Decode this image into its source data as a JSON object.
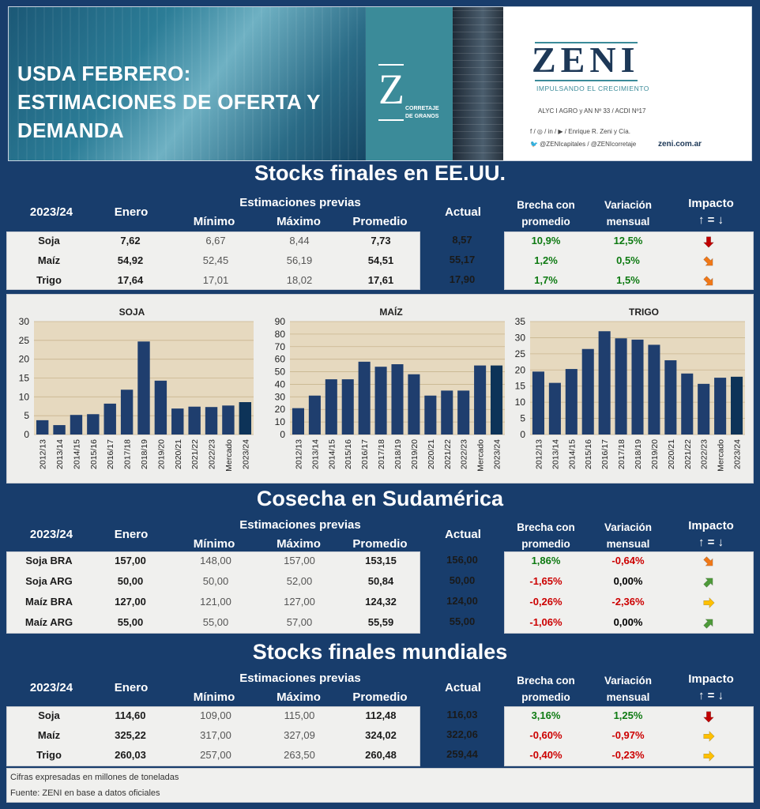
{
  "banner": {
    "title_lines": [
      "USDA FEBRERO:",
      "ESTIMACIONES DE OFERTA Y",
      "DEMANDA"
    ],
    "z_logo": "Z",
    "z_logo_sub1": "CORRETAJE",
    "z_logo_sub2": "DE GRANOS",
    "zeni_logo": "ZENI",
    "slogan": "IMPULSANDO EL CRECIMIENTO",
    "alyc": "ALYC I AGRO y AN Nº 33 / ACDI Nº17",
    "social1": "f / ◎ / in / ▶ / Enrique R. Zeni y Cía.",
    "social2": "🐦 @ZENIcapitales / @ZENIcorretaje",
    "web": "zeni.com.ar"
  },
  "headers": {
    "campaign": "2023/24",
    "enero": "Enero",
    "previas": "Estimaciones previas",
    "minimo": "Mínimo",
    "maximo": "Máximo",
    "promedio": "Promedio",
    "actual": "Actual",
    "brecha1": "Brecha con",
    "brecha2": "promedio",
    "variacion1": "Variación",
    "variacion2": "mensual",
    "impacto1": "Impacto",
    "impacto2": "↑ = ↓"
  },
  "sections": {
    "us": "Stocks finales en EE.UU.",
    "sa": "Cosecha en Sudamérica",
    "world": "Stocks finales mundiales"
  },
  "us_table": [
    {
      "name": "Soja",
      "enero": "7,62",
      "min": "6,67",
      "max": "8,44",
      "prom": "7,73",
      "actual": "8,57",
      "brecha": "10,9%",
      "brecha_color": "pos",
      "var": "12,5%",
      "var_color": "pos",
      "impact": "down"
    },
    {
      "name": "Maíz",
      "enero": "54,92",
      "min": "52,45",
      "max": "56,19",
      "prom": "54,51",
      "actual": "55,17",
      "brecha": "1,2%",
      "brecha_color": "pos",
      "var": "0,5%",
      "var_color": "pos",
      "impact": "downright"
    },
    {
      "name": "Trigo",
      "enero": "17,64",
      "min": "17,01",
      "max": "18,02",
      "prom": "17,61",
      "actual": "17,90",
      "brecha": "1,7%",
      "brecha_color": "pos",
      "var": "1,5%",
      "var_color": "pos",
      "impact": "downright"
    }
  ],
  "sa_table": [
    {
      "name": "Soja BRA",
      "enero": "157,00",
      "min": "148,00",
      "max": "157,00",
      "prom": "153,15",
      "actual": "156,00",
      "brecha": "1,86%",
      "brecha_color": "pos",
      "var": "-0,64%",
      "var_color": "neg",
      "impact": "downright"
    },
    {
      "name": "Soja ARG",
      "enero": "50,00",
      "min": "50,00",
      "max": "52,00",
      "prom": "50,84",
      "actual": "50,00",
      "brecha": "-1,65%",
      "brecha_color": "neg",
      "var": "0,00%",
      "var_color": "zero",
      "impact": "upright"
    },
    {
      "name": "Maíz BRA",
      "enero": "127,00",
      "min": "121,00",
      "max": "127,00",
      "prom": "124,32",
      "actual": "124,00",
      "brecha": "-0,26%",
      "brecha_color": "neg",
      "var": "-2,36%",
      "var_color": "neg",
      "impact": "right"
    },
    {
      "name": "Maíz ARG",
      "enero": "55,00",
      "min": "55,00",
      "max": "57,00",
      "prom": "55,59",
      "actual": "55,00",
      "brecha": "-1,06%",
      "brecha_color": "neg",
      "var": "0,00%",
      "var_color": "zero",
      "impact": "upright"
    }
  ],
  "world_table": [
    {
      "name": "Soja",
      "enero": "114,60",
      "min": "109,00",
      "max": "115,00",
      "prom": "112,48",
      "actual": "116,03",
      "brecha": "3,16%",
      "brecha_color": "pos",
      "var": "1,25%",
      "var_color": "pos",
      "impact": "down"
    },
    {
      "name": "Maíz",
      "enero": "325,22",
      "min": "317,00",
      "max": "327,09",
      "prom": "324,02",
      "actual": "322,06",
      "brecha": "-0,60%",
      "brecha_color": "neg",
      "var": "-0,97%",
      "var_color": "neg",
      "impact": "right"
    },
    {
      "name": "Trigo",
      "enero": "260,03",
      "min": "257,00",
      "max": "263,50",
      "prom": "260,48",
      "actual": "259,44",
      "brecha": "-0,40%",
      "brecha_color": "neg",
      "var": "-0,23%",
      "var_color": "neg",
      "impact": "right"
    }
  ],
  "colors": {
    "bar": "#1f3e6e",
    "bar_last": "#0d3358",
    "pos": "#0e7a12",
    "neg": "#cc0000",
    "arrow_red": "#c00000",
    "arrow_orange": "#f07818",
    "arrow_yellow": "#ffc000",
    "arrow_green": "#4e9a3a"
  },
  "chart_data": [
    {
      "type": "bar",
      "title": "SOJA",
      "categories": [
        "2012/13",
        "2013/14",
        "2014/15",
        "2015/16",
        "2016/17",
        "2017/18",
        "2018/19",
        "2019/20",
        "2020/21",
        "2021/22",
        "2022/23",
        "Mercado",
        "2023/24"
      ],
      "values": [
        3.8,
        2.5,
        5.2,
        5.4,
        8.2,
        11.9,
        24.7,
        14.3,
        6.9,
        7.4,
        7.3,
        7.7,
        8.6
      ],
      "ylim": [
        0,
        30
      ],
      "yticks": [
        0,
        5,
        10,
        15,
        20,
        25,
        30
      ],
      "grid": true
    },
    {
      "type": "bar",
      "title": "MAÍZ",
      "categories": [
        "2012/13",
        "2013/14",
        "2014/15",
        "2015/16",
        "2016/17",
        "2017/18",
        "2018/19",
        "2019/20",
        "2020/21",
        "2021/22",
        "2022/23",
        "Mercado",
        "2023/24"
      ],
      "values": [
        21,
        31,
        44,
        44,
        58,
        54,
        56,
        48,
        31,
        35,
        35,
        55,
        55
      ],
      "ylim": [
        0,
        90
      ],
      "yticks": [
        0,
        10,
        20,
        30,
        40,
        50,
        60,
        70,
        80,
        90
      ],
      "grid": true
    },
    {
      "type": "bar",
      "title": "TRIGO",
      "categories": [
        "2012/13",
        "2013/14",
        "2014/15",
        "2015/16",
        "2016/17",
        "2017/18",
        "2018/19",
        "2019/20",
        "2020/21",
        "2021/22",
        "2022/23",
        "Mercado",
        "2023/24"
      ],
      "values": [
        19.5,
        16.0,
        20.3,
        26.5,
        32.0,
        29.8,
        29.4,
        27.8,
        23.0,
        18.9,
        15.7,
        17.6,
        17.9
      ],
      "ylim": [
        0,
        35
      ],
      "yticks": [
        0,
        5,
        10,
        15,
        20,
        25,
        30,
        35
      ],
      "grid": true
    }
  ],
  "footer": {
    "note1": "Cifras expresadas en millones de toneladas",
    "note2": "Fuente: ZENI en base a datos oficiales"
  }
}
